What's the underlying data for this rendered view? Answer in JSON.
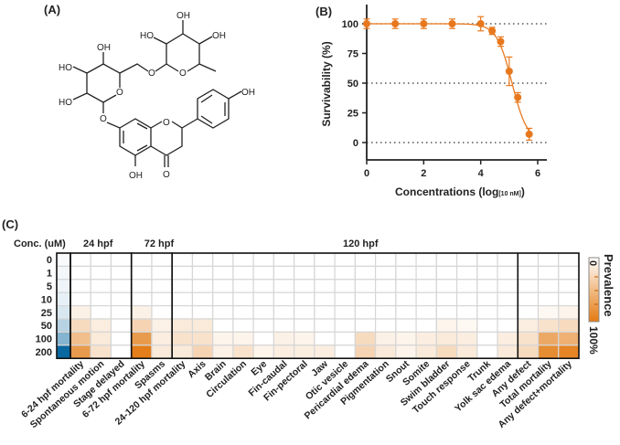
{
  "panels": {
    "a": "(A)",
    "b": "(B)",
    "c": "(C)"
  },
  "structure": {
    "atom_labels": [
      "OH",
      "HO",
      "OH",
      "HO",
      "OH",
      "HO",
      "O",
      "O",
      "O",
      "O",
      "O",
      "OH",
      "OH",
      "O"
    ]
  },
  "chart_data": [
    {
      "type": "line",
      "panel": "B",
      "xlabel": "Concentrations (log",
      "xlabel_sub": "[10 nM]",
      "xlabel_close": ")",
      "ylabel": "Survivability (%)",
      "xlim": [
        0,
        6.3
      ],
      "ylim": [
        -15,
        115
      ],
      "xticks": [
        "0",
        "2",
        "4",
        "6"
      ],
      "yticks": [
        "0",
        "25",
        "50",
        "75",
        "100"
      ],
      "reference_lines_y": [
        0,
        50,
        100
      ],
      "color": "#e8781e",
      "x": [
        0,
        1,
        2,
        3,
        4,
        4.4,
        4.7,
        5.0,
        5.3,
        5.7
      ],
      "y": [
        100,
        100,
        100,
        100,
        100,
        94,
        85,
        60,
        38,
        7
      ],
      "error": [
        4,
        4,
        4,
        4,
        6,
        3,
        4,
        12,
        4,
        5
      ]
    },
    {
      "type": "heatmap",
      "panel": "C",
      "row_header": "Conc. (uM)",
      "rows": [
        "0",
        "1",
        "5",
        "10",
        "25",
        "50",
        "100",
        "200"
      ],
      "groups": [
        {
          "label": "24 hpf",
          "columns": 3
        },
        {
          "label": "72 hpf",
          "columns": 2
        },
        {
          "label": "120 hpf",
          "columns": 20
        }
      ],
      "concentration_shading": [
        0.03,
        0.05,
        0.07,
        0.1,
        0.16,
        0.3,
        0.5,
        1.0
      ],
      "columns": [
        {
          "name": "6-24 hpf mortality",
          "values": [
            0,
            0,
            0,
            0,
            0.1,
            0.25,
            0.45,
            0.7
          ]
        },
        {
          "name": "Spontaneous motion",
          "values": [
            0,
            0,
            0,
            0,
            0,
            0.12,
            0.15,
            0.2
          ]
        },
        {
          "name": "Stage delayed",
          "values": [
            0,
            0,
            0,
            0,
            0,
            0,
            0,
            0
          ]
        },
        {
          "name": "6-72 hpf mortality",
          "values": [
            0,
            0,
            0,
            0,
            0.1,
            0.3,
            0.7,
            0.9
          ]
        },
        {
          "name": "Spasms",
          "values": [
            0,
            0,
            0,
            0,
            0,
            0.1,
            0.12,
            0.15
          ]
        },
        {
          "name": "24-120 hpf mortality",
          "values": [
            0,
            0,
            0,
            0,
            0,
            0.15,
            0.2,
            0.15
          ]
        },
        {
          "name": "Axis",
          "values": [
            0,
            0,
            0,
            0,
            0,
            0.15,
            0.2,
            0.3
          ]
        },
        {
          "name": "Brain",
          "values": [
            0,
            0,
            0,
            0,
            0,
            0,
            0.08,
            0.1
          ]
        },
        {
          "name": "Circulation",
          "values": [
            0,
            0,
            0,
            0,
            0,
            0,
            0.08,
            0.2
          ]
        },
        {
          "name": "Eye",
          "values": [
            0,
            0,
            0,
            0,
            0,
            0,
            0,
            0.08
          ]
        },
        {
          "name": "Fin-caudal",
          "values": [
            0,
            0,
            0,
            0,
            0,
            0,
            0.1,
            0.12
          ]
        },
        {
          "name": "Fin-pectoral",
          "values": [
            0,
            0,
            0,
            0,
            0,
            0,
            0.08,
            0.12
          ]
        },
        {
          "name": "Jaw",
          "values": [
            0,
            0,
            0,
            0,
            0,
            0,
            0,
            0.12
          ]
        },
        {
          "name": "Otic vesicle",
          "values": [
            0,
            0,
            0,
            0,
            0,
            0,
            0,
            0
          ]
        },
        {
          "name": "Pericardial edema",
          "values": [
            0,
            0,
            0,
            0,
            0,
            0,
            0.25,
            0.3
          ]
        },
        {
          "name": "Pigmentation",
          "values": [
            0,
            0,
            0,
            0,
            0,
            0,
            0.1,
            0.15
          ]
        },
        {
          "name": "Snout",
          "values": [
            0,
            0,
            0,
            0,
            0,
            0,
            0.08,
            0.08
          ]
        },
        {
          "name": "Somite",
          "values": [
            0,
            0,
            0,
            0,
            0,
            0,
            0.12,
            0.15
          ]
        },
        {
          "name": "Swim bladder",
          "values": [
            0,
            0,
            0,
            0,
            0,
            0.08,
            0.15,
            0.25
          ]
        },
        {
          "name": "Touch response",
          "values": [
            0,
            0,
            0,
            0,
            0,
            0.05,
            0.12,
            0.15
          ]
        },
        {
          "name": "Trunk",
          "values": [
            0,
            0,
            0,
            0,
            0,
            0,
            0,
            0
          ]
        },
        {
          "name": "Yolk sac edema",
          "values": [
            0,
            0,
            0,
            0,
            0,
            0,
            0.12,
            0.15
          ]
        },
        {
          "name": "Any defect",
          "values": [
            0,
            0,
            0,
            0,
            0,
            0.12,
            0.2,
            0.25
          ]
        },
        {
          "name": "Total mortality",
          "values": [
            0,
            0,
            0,
            0,
            0.05,
            0.2,
            0.6,
            0.8
          ]
        },
        {
          "name": "Any defect+mortality",
          "values": [
            0,
            0,
            0,
            0,
            0.08,
            0.25,
            0.55,
            0.85
          ]
        }
      ],
      "legend": {
        "title": "Prevalence",
        "min_label": "0",
        "max_label": "100%"
      },
      "scale_color": "#e07000",
      "conc_color": "#0a68a0",
      "grid_color": "#d6d6d6"
    }
  ]
}
